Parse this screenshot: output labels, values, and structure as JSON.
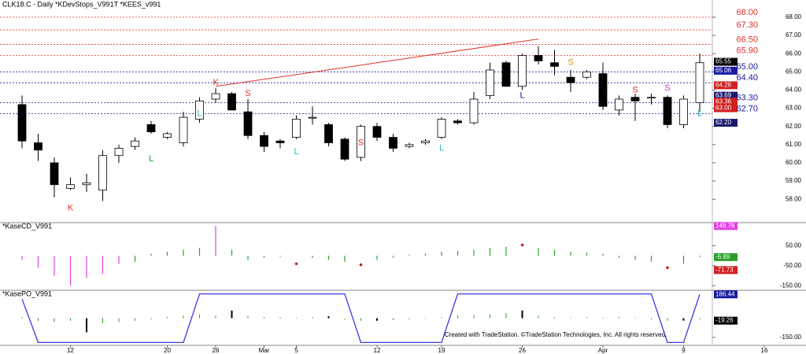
{
  "chart_data": [
    {
      "type": "candlestick",
      "title": "CLK18.C - Daily  *KDevStops_V991T  *KEES_v991",
      "categories": [
        null,
        null,
        null,
        "12",
        null,
        null,
        null,
        null,
        null,
        "20",
        null,
        null,
        "26",
        null,
        null,
        "Mar",
        null,
        "5",
        null,
        null,
        null,
        null,
        "12",
        null,
        null,
        null,
        "19",
        null,
        null,
        null,
        null,
        "26",
        null,
        null,
        null,
        null,
        "Apr",
        null,
        null,
        null,
        null,
        "9",
        null,
        null,
        null,
        null,
        "16"
      ],
      "open": [
        63.2,
        61.1,
        60.0,
        58.6,
        58.8,
        58.5,
        60.4,
        60.9,
        62.1,
        61.4,
        61.1,
        62.4,
        63.5,
        63.8,
        62.8,
        61.5,
        61.2,
        61.4,
        62.5,
        62.1,
        61.3,
        60.3,
        62.0,
        61.4,
        60.9,
        61.1,
        61.4,
        62.3,
        62.2,
        63.7,
        65.5,
        64.2,
        65.9,
        65.5,
        64.7,
        64.7,
        64.9,
        62.9,
        63.6,
        63.6,
        63.6,
        62.1,
        63.3,
        null,
        null,
        null,
        null
      ],
      "high": [
        63.7,
        61.6,
        60.3,
        59.2,
        59.4,
        60.7,
        61.0,
        61.4,
        62.3,
        61.7,
        62.8,
        63.6,
        64.1,
        63.9,
        63.5,
        61.7,
        61.3,
        62.6,
        63.1,
        62.2,
        61.4,
        62.1,
        62.2,
        61.6,
        61.1,
        61.3,
        62.5,
        62.4,
        63.9,
        65.5,
        65.6,
        66.0,
        66.4,
        66.2,
        65.1,
        65.1,
        65.5,
        63.7,
        63.8,
        63.8,
        63.7,
        63.7,
        66.0,
        null,
        null,
        null,
        null
      ],
      "low": [
        60.8,
        60.1,
        58.1,
        58.5,
        58.4,
        57.9,
        60.0,
        60.7,
        61.6,
        61.3,
        60.9,
        62.2,
        63.3,
        62.9,
        61.3,
        60.6,
        60.8,
        61.3,
        62.1,
        60.9,
        60.1,
        60.1,
        61.2,
        60.6,
        60.8,
        61.0,
        61.3,
        62.1,
        62.1,
        63.5,
        64.2,
        64.0,
        65.4,
        64.8,
        63.9,
        64.6,
        62.9,
        62.6,
        62.3,
        63.2,
        61.9,
        61.9,
        62.8,
        null,
        null,
        null,
        null
      ],
      "close": [
        61.2,
        60.7,
        58.8,
        58.8,
        58.9,
        60.4,
        60.8,
        61.2,
        61.7,
        61.6,
        62.5,
        63.4,
        63.8,
        62.9,
        61.5,
        60.9,
        61.1,
        62.4,
        62.5,
        61.1,
        60.2,
        62.0,
        61.4,
        60.8,
        61.0,
        61.2,
        62.4,
        62.2,
        63.5,
        65.1,
        64.2,
        65.9,
        65.6,
        65.3,
        64.4,
        65.0,
        63.1,
        63.5,
        63.4,
        63.6,
        62.1,
        63.5,
        65.5,
        null,
        null,
        null,
        null
      ],
      "ylim": [
        56.8,
        68.6
      ],
      "yticks": [
        {
          "value": 58,
          "label": "58.00"
        },
        {
          "value": 59,
          "label": "59.00"
        },
        {
          "value": 60,
          "label": "60.00"
        },
        {
          "value": 61,
          "label": "61.00"
        },
        {
          "value": 62,
          "label": "62.00"
        },
        {
          "value": 63,
          "label": "63.00"
        },
        {
          "value": 64,
          "label": "64.00"
        },
        {
          "value": 65,
          "label": "65.00"
        },
        {
          "value": 66,
          "label": "66.00"
        },
        {
          "value": 67,
          "label": "67.00"
        },
        {
          "value": 68,
          "label": "68.00"
        }
      ],
      "levels": [
        {
          "value": 68.0,
          "label": "68.00",
          "color": "#e0302a"
        },
        {
          "value": 67.3,
          "label": "67.30",
          "color": "#e0302a"
        },
        {
          "value": 66.5,
          "label": "66.50",
          "color": "#e0302a"
        },
        {
          "value": 65.9,
          "label": "65.90",
          "color": "#e0302a"
        },
        {
          "value": 65.0,
          "label": "65.00",
          "color": "#1a1aa0"
        },
        {
          "value": 64.4,
          "label": "64.40",
          "color": "#1a1aa0"
        },
        {
          "value": 63.3,
          "label": "63.30",
          "color": "#1a1aa0"
        },
        {
          "value": 62.7,
          "label": "62.70",
          "color": "#1a1aa0"
        }
      ],
      "value_boxes": [
        {
          "value": 65.55,
          "label": "65.55",
          "color": "#000000"
        },
        {
          "value": 65.06,
          "label": "65.06",
          "color": "#1a1aa0"
        },
        {
          "value": 64.26,
          "label": "64.26",
          "color": "#d02020"
        },
        {
          "value": 63.69,
          "label": "63.69",
          "color": "#1a1a70"
        },
        {
          "value": 63.36,
          "label": "63.36",
          "color": "#d02020"
        },
        {
          "value": 63.0,
          "label": "63.00",
          "color": "#d02020"
        },
        {
          "value": 62.2,
          "label": "62.20",
          "color": "#1a1a70"
        }
      ],
      "trendline": {
        "from_index": 12,
        "from_value": 64.2,
        "to_index": 32,
        "to_value": 66.8,
        "color": "#e0302a"
      },
      "signals": [
        {
          "index": 12,
          "value": 64.4,
          "text": "K",
          "color": "#e0302a"
        },
        {
          "index": 3,
          "value": 57.5,
          "text": "K",
          "color": "#e0302a"
        },
        {
          "index": 14,
          "value": 63.8,
          "text": "S",
          "color": "#e0302a"
        },
        {
          "index": 21,
          "value": 61.1,
          "text": "S",
          "color": "#e0302a"
        },
        {
          "index": 8,
          "value": 60.2,
          "text": "L",
          "color": "#2aa02a"
        },
        {
          "index": 11,
          "value": 62.7,
          "text": "L",
          "color": "#20b0d0"
        },
        {
          "index": 17,
          "value": 60.6,
          "text": "L",
          "color": "#20b0d0"
        },
        {
          "index": 26,
          "value": 60.8,
          "text": "L",
          "color": "#20b0d0"
        },
        {
          "index": 34,
          "value": 65.5,
          "text": "S",
          "color": "#e09020"
        },
        {
          "index": 38,
          "value": 64.0,
          "text": "S",
          "color": "#e0302a"
        },
        {
          "index": 40,
          "value": 64.1,
          "text": "S",
          "color": "#d030c0"
        },
        {
          "index": 31,
          "value": 63.7,
          "text": "L",
          "color": "#1a1aa0"
        },
        {
          "index": 42,
          "value": 62.7,
          "text": "L",
          "color": "#20b0d0"
        }
      ]
    },
    {
      "type": "bar",
      "title": "*KaseCD_V991",
      "values": [
        -20,
        -60,
        -100,
        -150,
        -110,
        -90,
        -40,
        -30,
        10,
        20,
        30,
        40,
        148.78,
        30,
        -20,
        -10,
        -5,
        -40,
        -10,
        -20,
        -30,
        -45,
        -20,
        -10,
        5,
        10,
        20,
        25,
        30,
        40,
        45,
        54,
        40,
        30,
        20,
        15,
        10,
        -10,
        -20,
        -30,
        -60,
        -40,
        -6.89
      ],
      "colors": [
        "#e040e0",
        "#e040e0",
        "#e040e0",
        "#e040e0",
        "#e040e0",
        "#e040e0",
        "#e040e0",
        "#2aa02a",
        "#2aa02a",
        "#2aa02a",
        "#2aa02a",
        "#2aa02a",
        "#e040e0",
        "#2aa02a",
        "#2aa02a",
        "#2aa02a",
        "#2aa02a",
        "#d02020",
        "#2aa02a",
        "#2aa02a",
        "#2aa02a",
        "#d02020",
        "#2aa02a",
        "#2aa02a",
        "#2aa02a",
        "#2aa02a",
        "#2aa02a",
        "#2aa02a",
        "#2aa02a",
        "#2aa02a",
        "#2aa02a",
        "#d02020",
        "#2aa02a",
        "#2aa02a",
        "#2aa02a",
        "#2aa02a",
        "#2aa02a",
        "#2aa02a",
        "#2aa02a",
        "#2aa02a",
        "#d02020",
        "#2aa02a",
        "#2aa02a"
      ],
      "ylim": [
        -165,
        154
      ],
      "yticks": [
        {
          "value": 50,
          "label": "50.00"
        },
        {
          "value": -50,
          "label": "-50.00"
        },
        {
          "value": -150,
          "label": "-150.00"
        }
      ],
      "value_boxes": [
        {
          "value": 148.78,
          "label": "148.78",
          "color": "#e040e0"
        },
        {
          "value": -6.89,
          "label": "-6.89",
          "color": "#2aa02a"
        },
        {
          "value": -71.73,
          "label": "-71.73",
          "color": "#d02020"
        }
      ]
    },
    {
      "type": "line",
      "title": "*KasePO_V991",
      "series": [
        {
          "name": "KasePO",
          "color": "#3a3ae0",
          "values": [
            150,
            -190,
            -190,
            -190,
            -190,
            -190,
            -190,
            -190,
            -190,
            -190,
            -190,
            190,
            190,
            190,
            190,
            190,
            190,
            190,
            190,
            190,
            190,
            -190,
            -190,
            -190,
            -190,
            -190,
            -190,
            190,
            190,
            190,
            190,
            190,
            190,
            190,
            190,
            190,
            190,
            190,
            190,
            190,
            -190,
            -190,
            186.44
          ]
        }
      ],
      "bars": [
        10,
        -20,
        -30,
        -20,
        -110,
        -40,
        -30,
        -20,
        -10,
        10,
        20,
        30,
        20,
        60,
        20,
        10,
        10,
        5,
        10,
        15,
        -10,
        -20,
        -20,
        -15,
        -10,
        -5,
        10,
        20,
        25,
        30,
        40,
        60,
        20,
        10,
        5,
        10,
        5,
        10,
        5,
        -10,
        -20,
        -19.26,
        -10
      ],
      "bar_colors": [
        "#2aa02a",
        "#2aa02a",
        "#2aa02a",
        "#2aa02a",
        "#000000",
        "#2aa02a",
        "#2aa02a",
        "#2aa02a",
        "#2aa02a",
        "#2aa02a",
        "#2aa02a",
        "#2aa02a",
        "#2aa02a",
        "#000000",
        "#2aa02a",
        "#2aa02a",
        "#2aa02a",
        "#2aa02a",
        "#2aa02a",
        "#000000",
        "#2aa02a",
        "#2aa02a",
        "#000000",
        "#2aa02a",
        "#2aa02a",
        "#2aa02a",
        "#2aa02a",
        "#2aa02a",
        "#2aa02a",
        "#2aa02a",
        "#2aa02a",
        "#000000",
        "#2aa02a",
        "#2aa02a",
        "#2aa02a",
        "#2aa02a",
        "#2aa02a",
        "#2aa02a",
        "#2aa02a",
        "#2aa02a",
        "#2aa02a",
        "#000000",
        "#2aa02a"
      ],
      "ylim": [
        -200,
        200
      ],
      "yticks": [
        {
          "value": -150,
          "label": "-150.00"
        }
      ],
      "value_boxes": [
        {
          "value": 186.44,
          "label": "186.44",
          "color": "#1a1aa0"
        },
        {
          "value": -19.26,
          "label": "-19.26",
          "color": "#000000"
        }
      ]
    }
  ],
  "footer": "Created with TradeStation. ©TradeStation Technologies, Inc. All rights reserved."
}
